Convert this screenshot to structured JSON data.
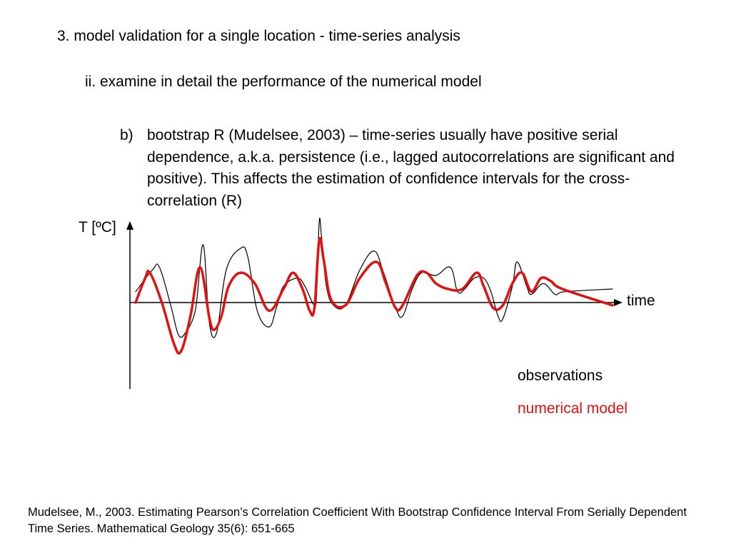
{
  "slide": {
    "heading1": "3. model validation for a single location - time-series analysis",
    "heading2": "ii. examine in detail the performance of the numerical model",
    "bullet_marker": "b)",
    "bullet_text": "bootstrap R (Mudelsee, 2003) – time-series usually have positive serial dependence, a.k.a. persistence (i.e., lagged autocorrelations are significant and positive). This affects the estimation of confidence intervals for the cross-correlation (R)",
    "reference": "Mudelsee, M., 2003. Estimating Pearson’s Correlation Coefficient With Bootstrap Confidence Interval From Serially Dependent Time Series. Mathematical Geology 35(6): 651-665"
  },
  "chart_data": {
    "type": "line",
    "xlabel": "time",
    "ylabel": "T [ºC]",
    "xlim": [
      0,
      100
    ],
    "ylim": [
      -1.6,
      1.5
    ],
    "grid": false,
    "legend_placement": "bottom-right",
    "series": [
      {
        "name": "observations",
        "color": "#000000",
        "stroke": "thin",
        "points": [
          [
            0,
            0.2
          ],
          [
            3.5,
            0.6
          ],
          [
            5,
            0.65
          ],
          [
            7.5,
            -0.1
          ],
          [
            9,
            -0.6
          ],
          [
            10.5,
            -0.55
          ],
          [
            12.5,
            -0.15
          ],
          [
            13.5,
            0.7
          ],
          [
            14,
            1.05
          ],
          [
            14.5,
            0.85
          ],
          [
            15.5,
            -0.4
          ],
          [
            17,
            -0.55
          ],
          [
            19,
            0.6
          ],
          [
            22,
            1.0
          ],
          [
            23.5,
            0.85
          ],
          [
            25.5,
            -0.15
          ],
          [
            28,
            -0.45
          ],
          [
            29.5,
            -0.1
          ],
          [
            31,
            0.3
          ],
          [
            34,
            0.45
          ],
          [
            35.5,
            0.3
          ],
          [
            37.5,
            -0.05
          ],
          [
            38,
            0.25
          ],
          [
            38.5,
            1.5
          ],
          [
            39,
            1.2
          ],
          [
            40,
            0.3
          ],
          [
            41.5,
            -0.05
          ],
          [
            44,
            -0.05
          ],
          [
            47,
            0.6
          ],
          [
            50,
            0.95
          ],
          [
            52,
            0.55
          ],
          [
            54.5,
            -0.1
          ],
          [
            56,
            -0.25
          ],
          [
            58,
            0.25
          ],
          [
            60,
            0.55
          ],
          [
            63,
            0.5
          ],
          [
            66,
            0.65
          ],
          [
            67.5,
            0.2
          ],
          [
            69,
            0.25
          ],
          [
            71,
            0.45
          ],
          [
            73,
            0.45
          ],
          [
            74.5,
            0.2
          ],
          [
            76,
            -0.25
          ],
          [
            77,
            -0.3
          ],
          [
            79,
            0.3
          ],
          [
            80,
            0.75
          ],
          [
            82,
            0.3
          ],
          [
            83,
            0.15
          ],
          [
            85.5,
            0.35
          ],
          [
            88,
            0.15
          ],
          [
            90,
            0.2
          ],
          [
            100,
            0.25
          ]
        ]
      },
      {
        "name": "numerical model",
        "color": "#e31010",
        "stroke": "thick",
        "points": [
          [
            0,
            0.0
          ],
          [
            2,
            0.45
          ],
          [
            3,
            0.55
          ],
          [
            5.5,
            0.0
          ],
          [
            8,
            -0.75
          ],
          [
            9.5,
            -0.9
          ],
          [
            11.5,
            -0.25
          ],
          [
            13.5,
            0.65
          ],
          [
            15.5,
            -0.3
          ],
          [
            16.5,
            -0.5
          ],
          [
            18,
            -0.25
          ],
          [
            19.5,
            0.3
          ],
          [
            22,
            0.55
          ],
          [
            25,
            0.35
          ],
          [
            28,
            -0.15
          ],
          [
            31,
            0.25
          ],
          [
            33,
            0.55
          ],
          [
            35,
            0.25
          ],
          [
            36.5,
            -0.15
          ],
          [
            37.5,
            -0.1
          ],
          [
            38.5,
            1.15
          ],
          [
            39.5,
            0.75
          ],
          [
            41,
            0.05
          ],
          [
            44,
            -0.05
          ],
          [
            47,
            0.45
          ],
          [
            50.5,
            0.75
          ],
          [
            52.5,
            0.35
          ],
          [
            54.5,
            -0.1
          ],
          [
            56,
            -0.05
          ],
          [
            59,
            0.5
          ],
          [
            61,
            0.55
          ],
          [
            63,
            0.35
          ],
          [
            65.5,
            0.25
          ],
          [
            68.5,
            0.25
          ],
          [
            71.5,
            0.55
          ],
          [
            73,
            0.3
          ],
          [
            75,
            -0.1
          ],
          [
            77,
            -0.05
          ],
          [
            79,
            0.35
          ],
          [
            81,
            0.55
          ],
          [
            83,
            0.2
          ],
          [
            85,
            0.45
          ],
          [
            87,
            0.4
          ],
          [
            89.5,
            0.25
          ],
          [
            100,
            -0.05
          ]
        ]
      }
    ],
    "legend": [
      "observations",
      "numerical model"
    ]
  }
}
